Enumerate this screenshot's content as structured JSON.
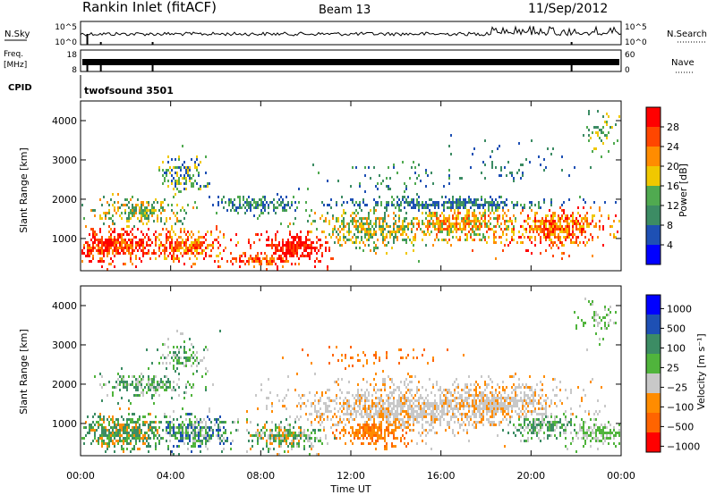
{
  "header": {
    "station": "Rankin Inlet (fitACF)",
    "beam": "Beam 13",
    "date": "11/Sep/2012"
  },
  "top_panels": {
    "nsky_label": "N.Sky",
    "nsky_ticks": [
      "10^5",
      "10^0"
    ],
    "nsearch_label": "N.Search",
    "nsearch_ticks": [
      "10^5",
      "10^0"
    ],
    "freq_label_1": "Freq.",
    "freq_label_2": "[MHz]",
    "freq_ticks": [
      "18",
      "8"
    ],
    "nave_label": "Nave",
    "nave_ticks": [
      "60",
      "0"
    ],
    "cpid_label": "CPID",
    "cpid_value": "twofsound 3501"
  },
  "colors": {
    "power": [
      "#0000ff",
      "#1e50b4",
      "#3c8c64",
      "#50aa50",
      "#f0c800",
      "#ff8c00",
      "#ff4600",
      "#ff0000"
    ],
    "velocity": [
      "#0000ff",
      "#1e50b4",
      "#3c8c64",
      "#50b43c",
      "#c8c8c8",
      "#ff8c00",
      "#ff6400",
      "#ff0000"
    ]
  },
  "chart_data": [
    {
      "type": "heatmap",
      "xlabel": "",
      "ylabel": "Slant Range [km]",
      "x_ticks": [
        "00:00",
        "04:00",
        "08:00",
        "12:00",
        "16:00",
        "20:00",
        "00:00"
      ],
      "y_ticks": [
        "1000",
        "2000",
        "3000",
        "4000"
      ],
      "xlim_hours": [
        0,
        24
      ],
      "ylim_km": [
        180,
        4500
      ],
      "colorbar": {
        "label": "Power [dB]",
        "ticks": [
          "4",
          "8",
          "12",
          "16",
          "20",
          "24",
          "28"
        ],
        "range": [
          0,
          32
        ]
      }
    },
    {
      "type": "heatmap",
      "xlabel": "Time UT",
      "ylabel": "Slant Range [km]",
      "x_ticks": [
        "00:00",
        "04:00",
        "08:00",
        "12:00",
        "16:00",
        "20:00",
        "00:00"
      ],
      "y_ticks": [
        "1000",
        "2000",
        "3000",
        "4000"
      ],
      "xlim_hours": [
        0,
        24
      ],
      "ylim_km": [
        180,
        4500
      ],
      "colorbar": {
        "label": "Velocity [m s⁻¹]",
        "ticks": [
          "1000",
          "500",
          "100",
          "25",
          "−25",
          "−100",
          "−500",
          "−1000"
        ]
      }
    }
  ]
}
